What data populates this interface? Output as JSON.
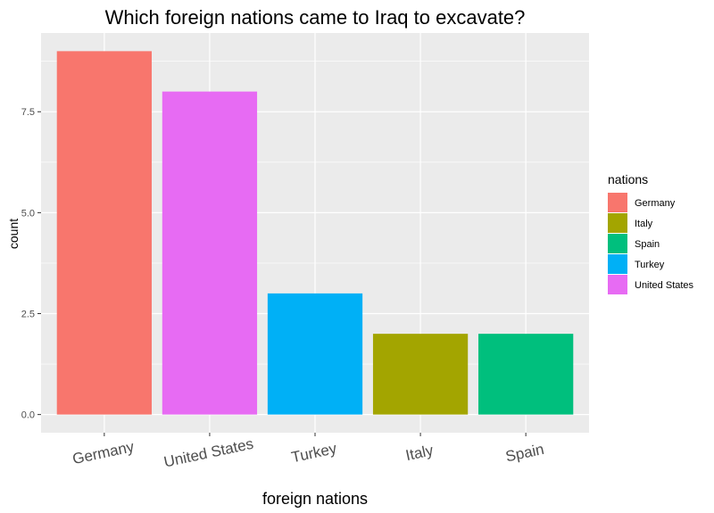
{
  "chart_data": {
    "type": "bar",
    "title": "Which foreign nations came to Iraq to excavate?",
    "xlabel": "foreign nations",
    "ylabel": "count",
    "categories": [
      "Germany",
      "United States",
      "Turkey",
      "Italy",
      "Spain"
    ],
    "values": [
      9,
      8,
      3,
      2,
      2
    ],
    "colors": [
      "#F8766D",
      "#E76BF3",
      "#00B0F6",
      "#A3A500",
      "#00BF7D"
    ],
    "yticks": [
      "0.0",
      "2.5",
      "5.0",
      "7.5"
    ],
    "ytick_values": [
      0,
      2.5,
      5,
      7.5
    ],
    "ylim": [
      -0.45,
      9.45
    ],
    "grid": true,
    "legend": {
      "title": "nations",
      "placement": "right",
      "items": [
        {
          "label": "Germany",
          "color": "#F8766D"
        },
        {
          "label": "Italy",
          "color": "#A3A500"
        },
        {
          "label": "Spain",
          "color": "#00BF7D"
        },
        {
          "label": "Turkey",
          "color": "#00B0F6"
        },
        {
          "label": "United States",
          "color": "#E76BF3"
        }
      ]
    }
  }
}
